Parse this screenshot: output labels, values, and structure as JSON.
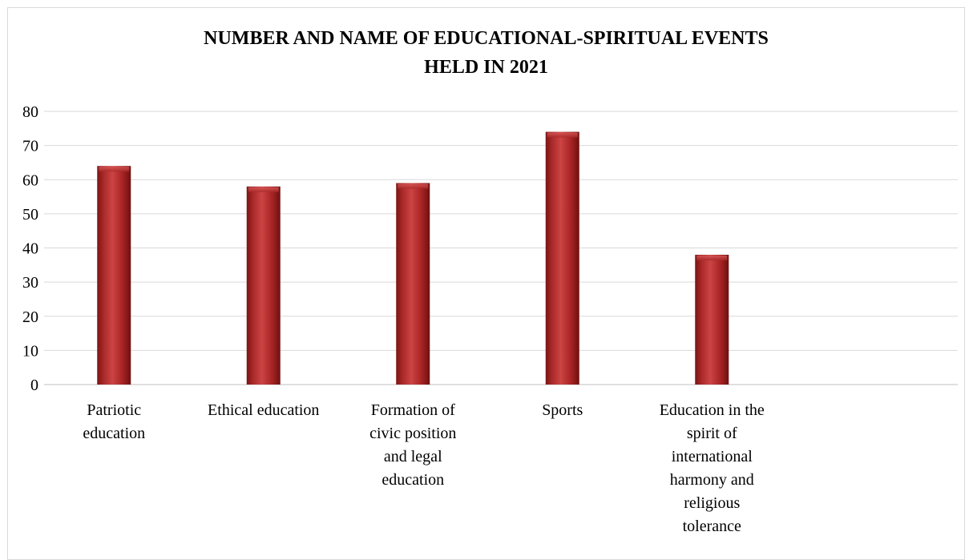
{
  "chart_data": {
    "type": "bar",
    "title": "NUMBER AND NAME OF EDUCATIONAL-SPIRITUAL EVENTS HELD IN 2021",
    "title_lines": [
      "NUMBER AND NAME OF EDUCATIONAL-SPIRITUAL EVENTS",
      "HELD IN 2021"
    ],
    "categories": [
      "Patriotic education",
      "Ethical education",
      "Formation of civic position and legal education",
      "Sports",
      "Education in the spirit of international harmony and religious tolerance"
    ],
    "category_label_lines": [
      [
        "Patriotic",
        "education"
      ],
      [
        "Ethical education"
      ],
      [
        "Formation of",
        "civic position",
        "and legal",
        "education"
      ],
      [
        "Sports"
      ],
      [
        "Education in the",
        "spirit of",
        "international",
        "harmony and",
        "religious",
        "tolerance"
      ]
    ],
    "values": [
      64,
      58,
      59,
      74,
      38
    ],
    "ylim": [
      0,
      80
    ],
    "yticks": [
      0,
      10,
      20,
      30,
      40,
      50,
      60,
      70,
      80
    ],
    "xlabel": "",
    "ylabel": "",
    "grid": true,
    "legend": "none",
    "bar_color": "#b03030"
  }
}
